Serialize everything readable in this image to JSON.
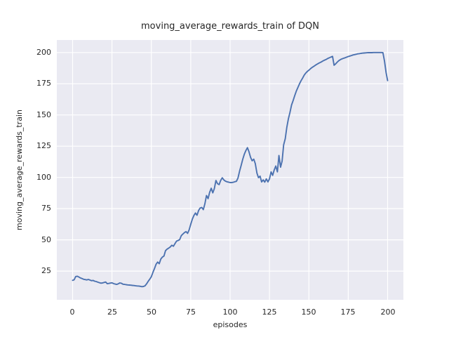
{
  "figure": {
    "title": "moving_average_rewards_train of DQN",
    "xlabel": "episodes",
    "ylabel": "moving_average_rewards_train"
  },
  "colors": {
    "line": "#4C72B0",
    "plot_background": "#EAEAF2",
    "grid": "#FFFFFF",
    "text": "#262626",
    "figure_background": "#FFFFFF"
  },
  "chart_data": {
    "type": "line",
    "title": "moving_average_rewards_train of DQN",
    "xlabel": "episodes",
    "ylabel": "moving_average_rewards_train",
    "x_ticks": [
      0,
      25,
      50,
      75,
      100,
      125,
      150,
      175,
      200
    ],
    "y_ticks": [
      25,
      50,
      75,
      100,
      125,
      150,
      175,
      200
    ],
    "xlim": [
      -10,
      210
    ],
    "ylim": [
      2,
      210
    ],
    "grid": true,
    "legend_position": "none",
    "series": [
      {
        "name": "moving_average_rewards_train",
        "x_start": 0,
        "x_step": 1,
        "values": [
          17.6,
          18.0,
          20.6,
          20.9,
          20.2,
          19.5,
          19.0,
          18.4,
          18.2,
          17.9,
          18.3,
          17.8,
          17.3,
          17.5,
          16.9,
          16.6,
          16.1,
          15.7,
          15.3,
          15.5,
          15.9,
          16.2,
          14.9,
          15.1,
          15.4,
          15.6,
          15.0,
          14.6,
          14.3,
          14.8,
          15.5,
          15.2,
          14.5,
          14.3,
          14.1,
          13.9,
          13.8,
          13.7,
          13.5,
          13.4,
          13.2,
          13.1,
          13.0,
          12.8,
          12.5,
          12.7,
          13.2,
          14.8,
          16.8,
          18.5,
          20.5,
          24.0,
          27.0,
          30.5,
          32.2,
          30.9,
          34.6,
          36.2,
          37.0,
          41.3,
          42.6,
          43.4,
          44.3,
          45.7,
          44.9,
          47.0,
          49.0,
          49.5,
          50.2,
          53.3,
          54.6,
          55.8,
          56.6,
          55.2,
          58.0,
          62.5,
          66.5,
          69.5,
          71.5,
          69.7,
          73.5,
          75.5,
          75.9,
          74.2,
          79.0,
          85.5,
          83.0,
          88.0,
          91.3,
          87.6,
          91.0,
          97.5,
          95.0,
          94.2,
          97.5,
          99.7,
          98.0,
          97.0,
          96.5,
          96.2,
          95.9,
          95.8,
          96.1,
          96.5,
          96.9,
          99.5,
          105.0,
          109.5,
          114.5,
          118.5,
          121.5,
          123.8,
          120.5,
          116.0,
          113.3,
          114.6,
          111.0,
          103.5,
          99.8,
          101.0,
          96.4,
          98.0,
          96.2,
          98.8,
          96.4,
          98.8,
          104.4,
          101.6,
          106.0,
          109.1,
          104.4,
          117.5,
          108.2,
          113.0,
          126.0,
          131.0,
          140.0,
          147.0,
          152.0,
          158.0,
          161.5,
          165.5,
          169.0,
          172.0,
          174.8,
          177.3,
          179.5,
          181.8,
          183.5,
          184.8,
          185.8,
          187.0,
          188.0,
          188.8,
          189.7,
          190.5,
          191.2,
          191.9,
          192.5,
          193.3,
          193.9,
          194.5,
          195.2,
          195.8,
          196.4,
          196.9,
          189.8,
          190.9,
          192.3,
          193.5,
          194.3,
          194.9,
          195.4,
          195.8,
          196.3,
          196.8,
          197.2,
          197.6,
          198.0,
          198.3,
          198.6,
          198.9,
          199.1,
          199.3,
          199.5,
          199.6,
          199.7,
          199.8,
          199.9,
          199.9,
          199.9,
          200.0,
          200.0,
          200.0,
          200.0,
          200.0,
          200.0,
          199.9,
          193.0,
          184.0,
          177.5
        ]
      }
    ]
  }
}
